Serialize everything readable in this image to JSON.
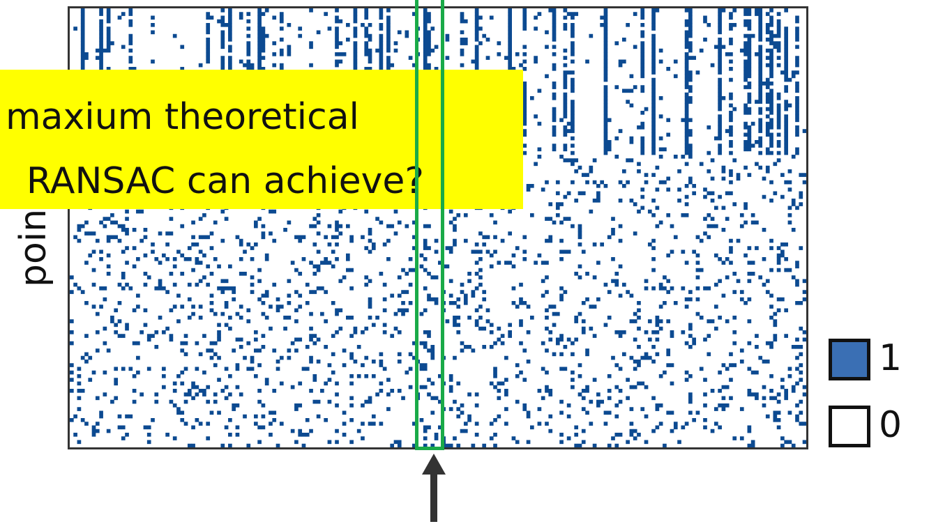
{
  "chart_data": {
    "type": "heatmap",
    "title": "",
    "ylabel": "points",
    "cell_size_note": "binary matrix, rows = points, columns = hypotheses",
    "rows": 120,
    "cols": 200,
    "highlighted_column": 96,
    "colors": {
      "one": "#0c4a91",
      "zero": "#ffffff",
      "highlight": "#1aaa48",
      "frame": "#333333"
    },
    "legend": [
      {
        "label": "1",
        "color": "#3a6fb4"
      },
      {
        "label": "0",
        "color": "#ffffff"
      }
    ]
  },
  "overlay": {
    "question_line1": "maxium theoretical",
    "question_line2": "RANSAC can achieve?",
    "background": "#ffff00"
  }
}
